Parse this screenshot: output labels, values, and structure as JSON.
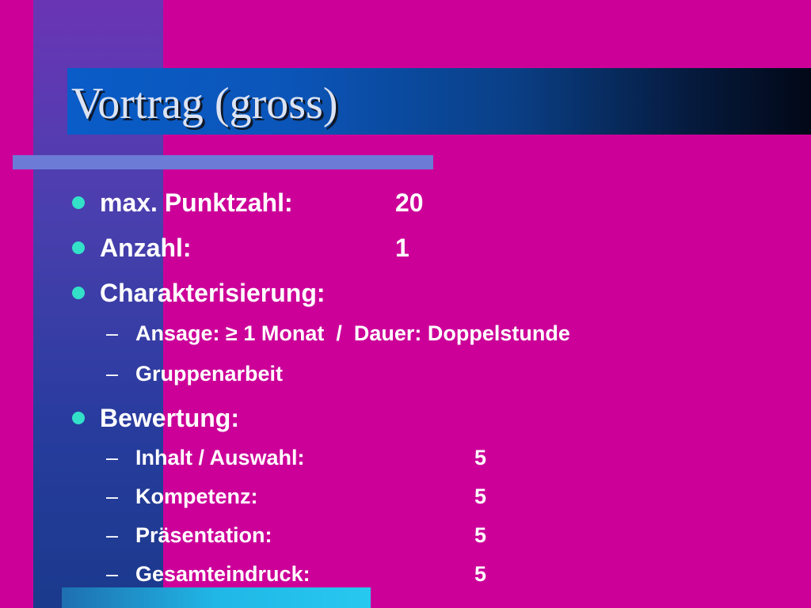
{
  "slide": {
    "title": "Vortrag (gross)",
    "items": [
      {
        "label": "max. Punktzahl:",
        "value": "20"
      },
      {
        "label": "Anzahl:",
        "value": "1"
      },
      {
        "label": "Charakterisierung:"
      },
      {
        "label": "Ansage: ≥ 1 Monat  /  Dauer: Doppelstunde"
      },
      {
        "label": "Gruppenarbeit"
      },
      {
        "label": "Bewertung:"
      },
      {
        "label": "Inhalt / Auswahl:",
        "value": "5"
      },
      {
        "label": "Kompetenz:",
        "value": "5"
      },
      {
        "label": "Präsentation:",
        "value": "5"
      },
      {
        "label": "Gesamteindruck:",
        "value": "5"
      }
    ],
    "dash_glyph": "–"
  },
  "colors": {
    "background": "#CC0099",
    "left_band": "#4A3FAE",
    "title_bar_start": "#0A5CC8",
    "title_bar_end": "#020817",
    "title_rule": "#6B7BD6",
    "bullet": "#33E0C8",
    "text": "#FFFFFF",
    "bottom_bar": "#27C8F0"
  }
}
